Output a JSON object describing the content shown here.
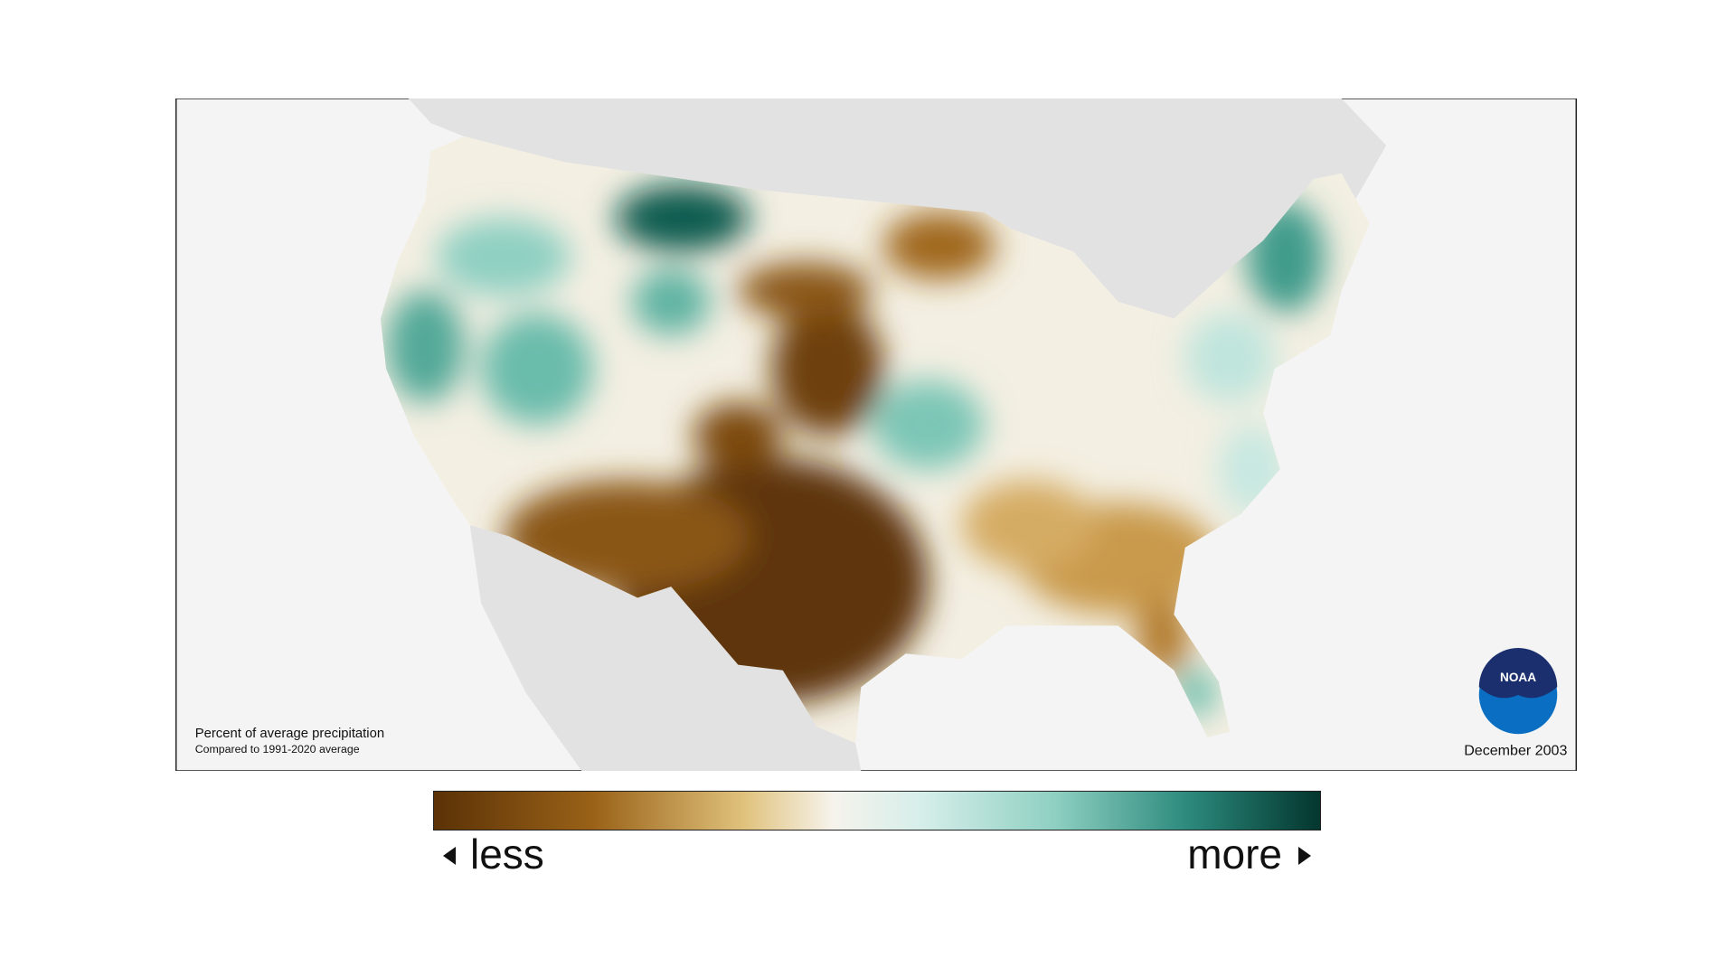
{
  "map": {
    "legend_title": "Percent of average precipitation",
    "legend_subtitle": "Compared to 1991-2020 average",
    "date": "December 2003",
    "logo": "NOAA"
  },
  "colorbar": {
    "low": "less",
    "high": "more"
  }
}
